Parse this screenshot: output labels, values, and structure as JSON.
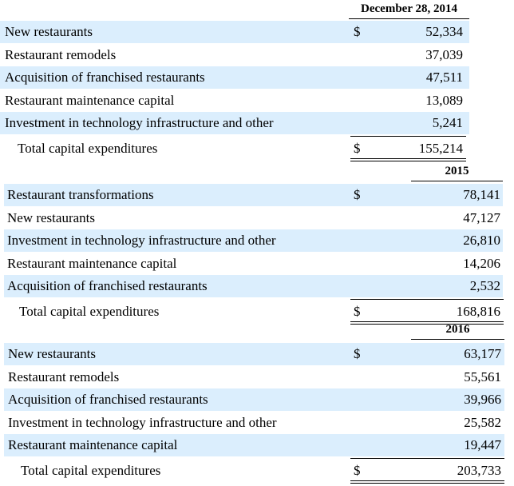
{
  "tables": [
    {
      "header": "December 28, 2014",
      "rows": [
        {
          "label": "New restaurants",
          "currency": "$",
          "value": "52,334"
        },
        {
          "label": "Restaurant remodels",
          "value": "37,039"
        },
        {
          "label": "Acquisition of franchised restaurants",
          "value": "47,511"
        },
        {
          "label": "Restaurant maintenance capital",
          "value": "13,089"
        },
        {
          "label": "Investment in technology infrastructure and other",
          "value": "5,241"
        }
      ],
      "total": {
        "label": "Total capital expenditures",
        "currency": "$",
        "value": "155,214"
      }
    },
    {
      "header": "2015",
      "rows": [
        {
          "label": "Restaurant transformations",
          "currency": "$",
          "value": "78,141"
        },
        {
          "label": "New restaurants",
          "value": "47,127"
        },
        {
          "label": "Investment in technology infrastructure and other",
          "value": "26,810"
        },
        {
          "label": "Restaurant maintenance capital",
          "value": "14,206"
        },
        {
          "label": "Acquisition of franchised restaurants",
          "value": "2,532"
        }
      ],
      "total": {
        "label": "Total capital expenditures",
        "currency": "$",
        "value": "168,816"
      }
    },
    {
      "header": "2016",
      "rows": [
        {
          "label": "New restaurants",
          "currency": "$",
          "value": "63,177"
        },
        {
          "label": "Restaurant remodels",
          "value": "55,561"
        },
        {
          "label": "Acquisition of franchised restaurants",
          "value": "39,966"
        },
        {
          "label": "Investment in technology infrastructure and other",
          "value": "25,582"
        },
        {
          "label": "Restaurant maintenance capital",
          "value": "19,447"
        }
      ],
      "total": {
        "label": "Total capital expenditures",
        "currency": "$",
        "value": "203,733"
      }
    }
  ]
}
